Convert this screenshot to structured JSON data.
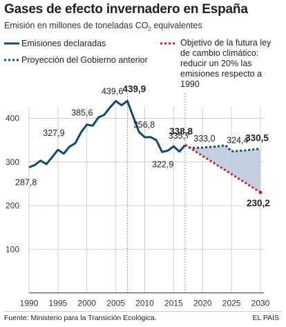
{
  "header": {
    "title": "Gases de efecto invernadero en España",
    "subtitle_main": "Emisión en millones de toneladas CO",
    "subtitle_sub": "2",
    "subtitle_tail": " equivalentes"
  },
  "legend": {
    "declared": "Emisiones declaradas",
    "projection": "Proyección del Gobierno anterior",
    "objective": "Objetivo de la futura ley de cambio climático: reducir un 20% las emisiones respecto a 1990"
  },
  "footer": {
    "source": "Fuente: Ministerio para la Transición Ecológica.",
    "brand": "EL PAÍS"
  },
  "colors": {
    "declared": "#0f4a6e",
    "projection": "#1b4a76",
    "objective": "#c2272d",
    "area_fill": "#b8c8da",
    "grid": "#cfcfcf",
    "vline": "#888888"
  },
  "chart_data": {
    "type": "line",
    "xlim": [
      1990,
      2030
    ],
    "ylim": [
      0,
      450
    ],
    "x_ticks": [
      1990,
      1995,
      2000,
      2005,
      2010,
      2015,
      2020,
      2025,
      2030
    ],
    "y_ticks": [
      100,
      200,
      300,
      400
    ],
    "series": [
      {
        "key": "declared",
        "x": [
          1990,
          1991,
          1992,
          1993,
          1994,
          1995,
          1996,
          1997,
          1998,
          1999,
          2000,
          2001,
          2002,
          2003,
          2004,
          2005,
          2006,
          2007,
          2008,
          2009,
          2010,
          2011,
          2012,
          2013,
          2014,
          2015,
          2016,
          2017
        ],
        "y": [
          287.8,
          293,
          303,
          295,
          311,
          327.9,
          319,
          335,
          343,
          368,
          385.6,
          383,
          402,
          408,
          425,
          439.6,
          430,
          439.9,
          404,
          369,
          356.8,
          357,
          350,
          322.9,
          326,
          335.7,
          324,
          338.8
        ]
      },
      {
        "key": "projection",
        "x": [
          2017,
          2018,
          2020,
          2022,
          2024,
          2025,
          2027,
          2030
        ],
        "y": [
          338.8,
          332,
          333.0,
          335,
          338,
          324.4,
          326,
          330.5
        ]
      },
      {
        "key": "objective",
        "x": [
          2017,
          2030
        ],
        "y": [
          338.8,
          230.2
        ]
      }
    ],
    "labels": [
      {
        "x": 1990,
        "y": 287.8,
        "text": "287,8",
        "bold": false
      },
      {
        "x": 1995,
        "y": 327.9,
        "text": "327,9",
        "bold": false
      },
      {
        "x": 2000,
        "y": 385.6,
        "text": "385,6",
        "bold": false
      },
      {
        "x": 2005,
        "y": 439.6,
        "text": "439,6",
        "bold": false
      },
      {
        "x": 2007,
        "y": 439.9,
        "text": "439,9",
        "bold": true
      },
      {
        "x": 2010,
        "y": 356.8,
        "text": "356,8",
        "bold": false
      },
      {
        "x": 2013,
        "y": 322.9,
        "text": "322,9",
        "bold": false
      },
      {
        "x": 2015,
        "y": 335.7,
        "text": "335,7",
        "bold": false
      },
      {
        "x": 2017,
        "y": 338.8,
        "text": "338,8",
        "bold": true
      },
      {
        "x": 2020,
        "y": 333.0,
        "text": "333,0",
        "bold": false
      },
      {
        "x": 2025,
        "y": 324.4,
        "text": "324,4",
        "bold": false
      },
      {
        "x": 2030,
        "y": 330.5,
        "text": "330,5",
        "bold": true
      },
      {
        "x": 2030,
        "y": 230.2,
        "text": "230,2",
        "bold": true
      }
    ],
    "vlines": [
      2007,
      2017
    ]
  }
}
